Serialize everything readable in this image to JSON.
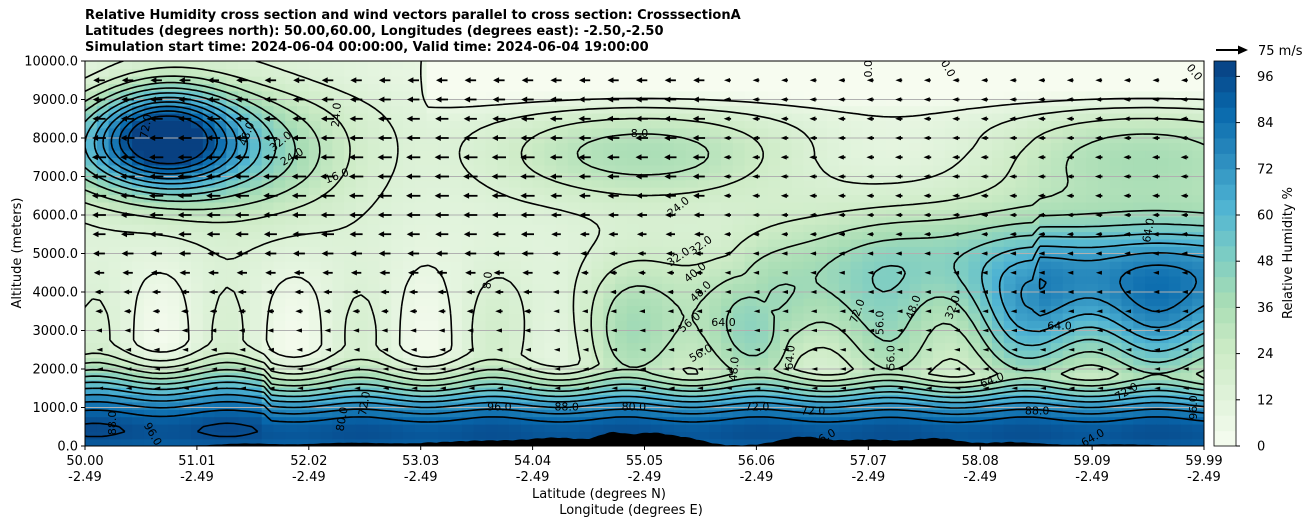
{
  "title_lines": [
    "Relative Humidity cross section and wind vectors parallel to cross section: CrosssectionA",
    "Latitudes (degrees north): 50.00,60.00, Longitudes (degrees east): -2.50,-2.50",
    "Simulation start time: 2024-06-04 00:00:00, Valid time: 2024-06-04 19:00:00"
  ],
  "chart_data": {
    "type": "heatmap",
    "subtype": "filled-contour cross section with contour lines, quiver vectors and terrain",
    "ylabel": "Altitude (meters)",
    "xlabel_lines": [
      "Latitude (degrees N)",
      "Longitude (degrees E)"
    ],
    "colorbar_label": "Relative Humidity %",
    "colormap": "GnBu",
    "colormap_colors": [
      "#f7fcf0",
      "#e0f3db",
      "#ccebc5",
      "#a8ddb5",
      "#7bccc4",
      "#4eb3d3",
      "#2b8cbe",
      "#0868ac",
      "#084081"
    ],
    "colorbar_range": [
      0,
      100
    ],
    "colorbar_ticks": [
      "0",
      "12",
      "24",
      "36",
      "48",
      "60",
      "72",
      "84",
      "96"
    ],
    "ylim": [
      0,
      10000
    ],
    "y_ticks": [
      "0.0",
      "1000.0",
      "2000.0",
      "3000.0",
      "4000.0",
      "5000.0",
      "6000.0",
      "7000.0",
      "8000.0",
      "9000.0",
      "10000.0"
    ],
    "x_ticks_lat": [
      "50.00",
      "51.01",
      "52.02",
      "53.03",
      "54.04",
      "55.05",
      "56.06",
      "57.07",
      "58.08",
      "59.09",
      "59.99"
    ],
    "x_ticks_lon": [
      "-2.49",
      "-2.49",
      "-2.49",
      "-2.49",
      "-2.49",
      "-2.49",
      "-2.49",
      "-2.49",
      "-2.49",
      "-2.49",
      "-2.49"
    ],
    "x_range": [
      50.0,
      59.99
    ],
    "grid": "horizontal",
    "quiver_key": {
      "label": "75 m/s"
    },
    "contour_levels_labeled": [
      "0.0",
      "8.0",
      "16.0",
      "24.0",
      "32.0",
      "40.0",
      "48.0",
      "56.0",
      "64.0",
      "72.0",
      "80.0",
      "88.0",
      "96.0"
    ],
    "contour_label_positions": [
      {
        "lat": 50.55,
        "alt": 8300,
        "text": "72.0",
        "rot": -80
      },
      {
        "lat": 51.45,
        "alt": 8100,
        "text": "48.0",
        "rot": -70
      },
      {
        "lat": 51.75,
        "alt": 7900,
        "text": "32.0",
        "rot": -40
      },
      {
        "lat": 51.85,
        "alt": 7500,
        "text": "24.0",
        "rot": -30
      },
      {
        "lat": 52.25,
        "alt": 8600,
        "text": "24.0",
        "rot": -85
      },
      {
        "lat": 52.25,
        "alt": 7000,
        "text": "16.0",
        "rot": -20
      },
      {
        "lat": 54.95,
        "alt": 8100,
        "text": "8.0",
        "rot": 0
      },
      {
        "lat": 55.3,
        "alt": 6200,
        "text": "24.0",
        "rot": -40
      },
      {
        "lat": 55.5,
        "alt": 5200,
        "text": "32.0",
        "rot": -35
      },
      {
        "lat": 55.3,
        "alt": 4900,
        "text": "32.0",
        "rot": -35
      },
      {
        "lat": 55.45,
        "alt": 4500,
        "text": "40.0",
        "rot": -40
      },
      {
        "lat": 55.5,
        "alt": 4000,
        "text": "48.0",
        "rot": -45
      },
      {
        "lat": 55.4,
        "alt": 3200,
        "text": "56.0",
        "rot": -40
      },
      {
        "lat": 55.7,
        "alt": 3200,
        "text": "64.0",
        "rot": 0
      },
      {
        "lat": 55.5,
        "alt": 2400,
        "text": "56.0",
        "rot": -30
      },
      {
        "lat": 53.6,
        "alt": 4300,
        "text": "8.0",
        "rot": -85
      },
      {
        "lat": 55.8,
        "alt": 2000,
        "text": "48.0",
        "rot": -85
      },
      {
        "lat": 56.3,
        "alt": 2300,
        "text": "64.0",
        "rot": -85
      },
      {
        "lat": 56.9,
        "alt": 3500,
        "text": "72.0",
        "rot": -70
      },
      {
        "lat": 57.1,
        "alt": 3200,
        "text": "56.0",
        "rot": -90
      },
      {
        "lat": 57.2,
        "alt": 2300,
        "text": "56.0",
        "rot": -90
      },
      {
        "lat": 57.4,
        "alt": 3600,
        "text": "48.0",
        "rot": -70
      },
      {
        "lat": 57.75,
        "alt": 3600,
        "text": "32.0",
        "rot": -70
      },
      {
        "lat": 58.7,
        "alt": 3100,
        "text": "64.0",
        "rot": 0
      },
      {
        "lat": 58.1,
        "alt": 1700,
        "text": "64.0",
        "rot": -20
      },
      {
        "lat": 59.3,
        "alt": 1400,
        "text": "72.0",
        "rot": -30
      },
      {
        "lat": 59.5,
        "alt": 5600,
        "text": "64.0",
        "rot": -80
      },
      {
        "lat": 59.9,
        "alt": 9700,
        "text": "0.0",
        "rot": 50
      },
      {
        "lat": 57.0,
        "alt": 9800,
        "text": "0.0",
        "rot": -90
      },
      {
        "lat": 57.7,
        "alt": 9800,
        "text": "0.0",
        "rot": 60
      },
      {
        "lat": 56.0,
        "alt": 1000,
        "text": "72.0",
        "rot": 0
      },
      {
        "lat": 56.5,
        "alt": 900,
        "text": "72.0",
        "rot": 0
      },
      {
        "lat": 54.9,
        "alt": 1000,
        "text": "80.0",
        "rot": 0
      },
      {
        "lat": 54.3,
        "alt": 1000,
        "text": "88.0",
        "rot": 0
      },
      {
        "lat": 53.7,
        "alt": 1000,
        "text": "96.0",
        "rot": 0
      },
      {
        "lat": 52.5,
        "alt": 1100,
        "text": "72.0",
        "rot": -80
      },
      {
        "lat": 52.3,
        "alt": 700,
        "text": "80.0",
        "rot": -80
      },
      {
        "lat": 50.25,
        "alt": 600,
        "text": "88.0",
        "rot": -90
      },
      {
        "lat": 50.6,
        "alt": 300,
        "text": "96.0",
        "rot": 60
      },
      {
        "lat": 59.9,
        "alt": 1000,
        "text": "96.0",
        "rot": -90
      },
      {
        "lat": 58.5,
        "alt": 900,
        "text": "88.0",
        "rot": 0
      },
      {
        "lat": 56.6,
        "alt": 200,
        "text": "56.0",
        "rot": -30
      },
      {
        "lat": 59.0,
        "alt": 200,
        "text": "64.0",
        "rot": -30
      }
    ]
  }
}
